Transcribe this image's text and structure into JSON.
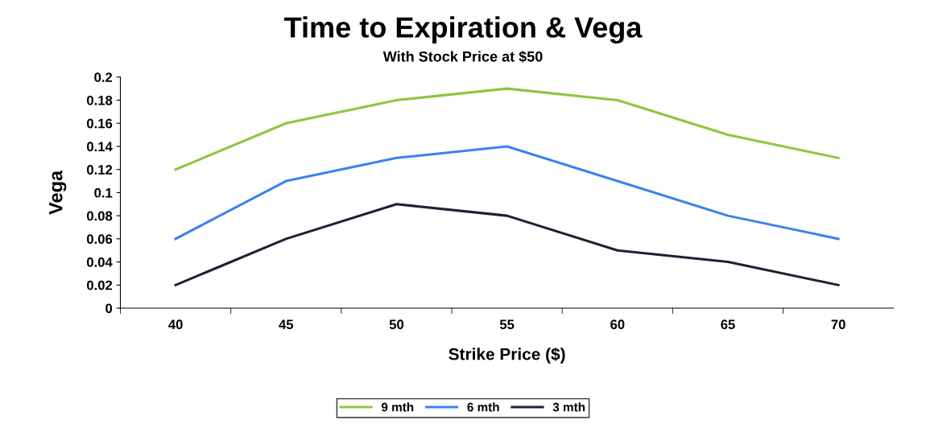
{
  "chart_data": {
    "type": "line",
    "title": "Time to Expiration & Vega",
    "subtitle": "With Stock Price at $50",
    "xlabel": "Strike Price ($)",
    "ylabel": "Vega",
    "categories": [
      "40",
      "45",
      "50",
      "55",
      "60",
      "65",
      "70"
    ],
    "series": [
      {
        "name": "9 mth",
        "color": "#8dc63f",
        "values": [
          0.12,
          0.16,
          0.18,
          0.19,
          0.18,
          0.15,
          0.13
        ]
      },
      {
        "name": "6 mth",
        "color": "#3b82f0",
        "values": [
          0.06,
          0.11,
          0.13,
          0.14,
          0.11,
          0.08,
          0.06
        ]
      },
      {
        "name": "3 mth",
        "color": "#1c2233",
        "values": [
          0.02,
          0.06,
          0.09,
          0.08,
          0.05,
          0.04,
          0.02
        ]
      }
    ],
    "ylim": [
      0,
      0.2
    ],
    "yticks": [
      0,
      0.02,
      0.04,
      0.06,
      0.08,
      0.1,
      0.12,
      0.14,
      0.16,
      0.18,
      0.2
    ],
    "grid": false,
    "legend": "bottom",
    "marker": "none",
    "line_style": "solid"
  }
}
